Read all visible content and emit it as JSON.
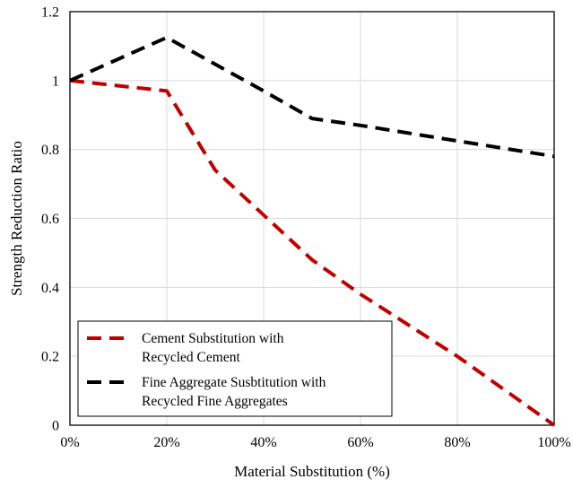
{
  "chart_data": {
    "type": "line",
    "xlabel": "Material Substitution (%)",
    "ylabel": "Strength Reduction Ratio",
    "xlim": [
      0,
      100
    ],
    "ylim": [
      0,
      1.2
    ],
    "x_ticks": [
      0,
      20,
      40,
      60,
      80,
      100
    ],
    "x_tick_labels": [
      "0%",
      "20%",
      "40%",
      "60%",
      "80%",
      "100%"
    ],
    "y_ticks": [
      0,
      0.2,
      0.4,
      0.6,
      0.8,
      1,
      1.2
    ],
    "y_tick_labels": [
      "0",
      "0.2",
      "0.4",
      "0.6",
      "0.8",
      "1",
      "1.2"
    ],
    "grid": true,
    "legend_position": "bottom-left",
    "series": [
      {
        "name_lines": [
          "Cement Substitution with",
          "Recycled Cement"
        ],
        "color": "#c00000",
        "line_style": "dashed",
        "points": [
          [
            0,
            1.0
          ],
          [
            20,
            0.97
          ],
          [
            30,
            0.74
          ],
          [
            40,
            0.61
          ],
          [
            50,
            0.48
          ],
          [
            60,
            0.38
          ],
          [
            70,
            0.29
          ],
          [
            80,
            0.2
          ],
          [
            90,
            0.1
          ],
          [
            100,
            0.0
          ]
        ]
      },
      {
        "name_lines": [
          "Fine Aggregate Susbtitution with",
          "Recycled Fine Aggregates"
        ],
        "color": "#000000",
        "line_style": "dashed",
        "points": [
          [
            0,
            1.0
          ],
          [
            20,
            1.125
          ],
          [
            40,
            0.97
          ],
          [
            50,
            0.89
          ],
          [
            60,
            0.87
          ],
          [
            80,
            0.825
          ],
          [
            100,
            0.78
          ]
        ]
      }
    ]
  }
}
